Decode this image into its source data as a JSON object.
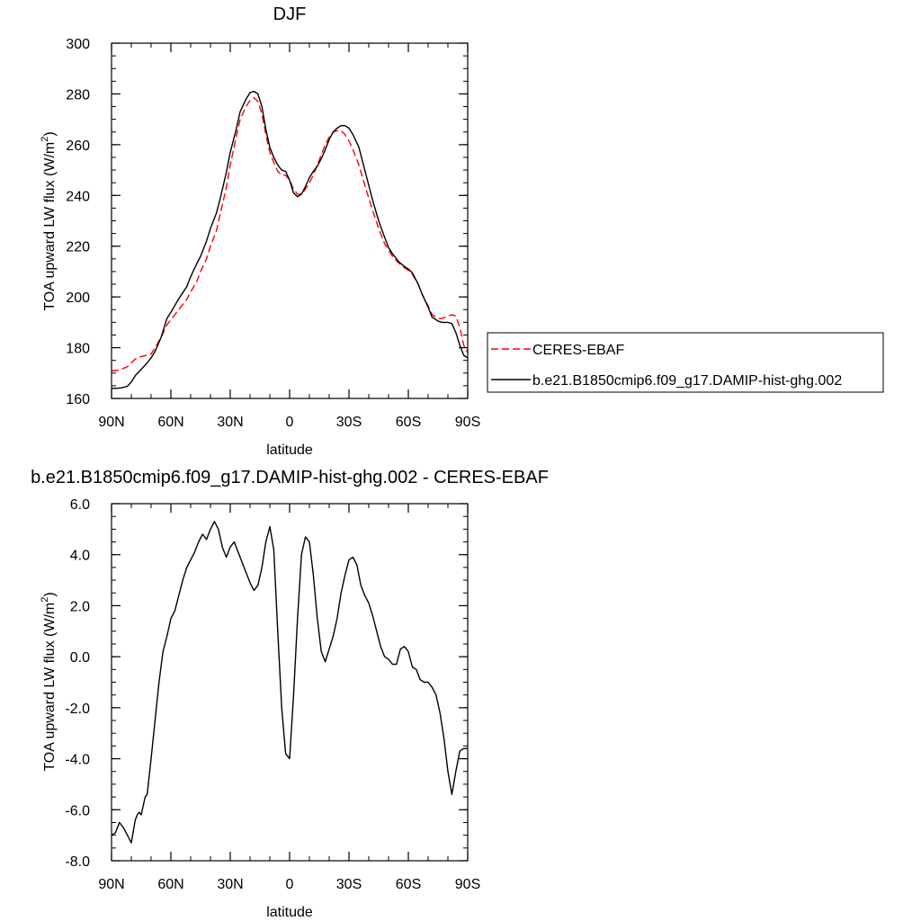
{
  "chart_data": [
    {
      "type": "line",
      "title": "DJF",
      "xlabel": "latitude",
      "ylabel": "TOA upward LW flux (W/m",
      "ylabel_sup": "2",
      "ylabel_end": ")",
      "xlim": [
        90,
        -90
      ],
      "ylim": [
        160,
        300
      ],
      "xticks": [
        {
          "value": 90,
          "label": "90N"
        },
        {
          "value": 60,
          "label": "60N"
        },
        {
          "value": 30,
          "label": "30N"
        },
        {
          "value": 0,
          "label": "0"
        },
        {
          "value": -30,
          "label": "30S"
        },
        {
          "value": -60,
          "label": "60S"
        },
        {
          "value": -90,
          "label": "90S"
        }
      ],
      "yticks": [
        {
          "value": 160,
          "label": "160"
        },
        {
          "value": 180,
          "label": "180"
        },
        {
          "value": 200,
          "label": "200"
        },
        {
          "value": 220,
          "label": "220"
        },
        {
          "value": 240,
          "label": "240"
        },
        {
          "value": 260,
          "label": "260"
        },
        {
          "value": 280,
          "label": "280"
        },
        {
          "value": 300,
          "label": "300"
        }
      ],
      "legend_position": "right",
      "series": [
        {
          "name": "CERES-EBAF",
          "color": "#ff0000",
          "style": "dashed",
          "x": [
            90,
            87,
            85,
            82,
            80,
            78,
            75,
            72,
            70,
            68,
            65,
            62,
            60,
            57,
            55,
            52,
            50,
            47,
            45,
            42,
            40,
            37,
            35,
            32,
            30,
            27,
            25,
            22,
            20,
            18,
            16,
            14,
            12,
            10,
            8,
            6,
            4,
            2,
            0,
            -2,
            -4,
            -6,
            -8,
            -10,
            -12,
            -14,
            -16,
            -18,
            -20,
            -22,
            -24,
            -26,
            -28,
            -30,
            -32,
            -35,
            -38,
            -40,
            -42,
            -45,
            -48,
            -50,
            -52,
            -55,
            -58,
            -60,
            -62,
            -65,
            -67,
            -70,
            -72,
            -75,
            -77,
            -80,
            -82,
            -84,
            -86,
            -88,
            -90
          ],
          "y": [
            171,
            171,
            171.5,
            172.5,
            174,
            175.5,
            176.5,
            177,
            177.5,
            180,
            184,
            189,
            191,
            194,
            196,
            199,
            202,
            206,
            210,
            215,
            220,
            226,
            233,
            243,
            252,
            263,
            270,
            275,
            277.5,
            278.5,
            277,
            272,
            264,
            257,
            253,
            249.5,
            248,
            248,
            246,
            242.5,
            240.5,
            240.5,
            242.5,
            245,
            248,
            252,
            256,
            260,
            263,
            265,
            265.5,
            265.5,
            264,
            261.5,
            258,
            252,
            244,
            239,
            234,
            227,
            221,
            218.5,
            216,
            213.5,
            211.5,
            210.5,
            209,
            205,
            201,
            196.5,
            193,
            191.5,
            191.5,
            192.5,
            193,
            192.5,
            188,
            181,
            178
          ]
        },
        {
          "name": "b.e21.B1850cmip6.f09_g17.DAMIP-hist-ghg.002",
          "color": "#000000",
          "style": "solid",
          "x": [
            90,
            87,
            85,
            82,
            80,
            78,
            75,
            72,
            70,
            68,
            65,
            62,
            60,
            57,
            55,
            52,
            50,
            47,
            45,
            42,
            40,
            37,
            35,
            32,
            30,
            27,
            25,
            22,
            20,
            18,
            16,
            14,
            12,
            10,
            8,
            6,
            4,
            2,
            0,
            -2,
            -4,
            -6,
            -8,
            -10,
            -12,
            -14,
            -16,
            -18,
            -20,
            -22,
            -24,
            -26,
            -28,
            -30,
            -32,
            -35,
            -38,
            -40,
            -42,
            -45,
            -48,
            -50,
            -52,
            -55,
            -58,
            -60,
            -62,
            -65,
            -67,
            -70,
            -72,
            -75,
            -77,
            -80,
            -82,
            -84,
            -86,
            -88,
            -90
          ],
          "y": [
            164,
            164,
            164.2,
            164.8,
            166.5,
            169,
            171.5,
            174,
            176,
            178.5,
            184,
            191.5,
            194,
            198,
            200.5,
            204,
            208,
            213,
            216,
            222,
            227,
            233,
            239,
            249,
            257,
            266,
            273,
            278,
            280.5,
            281,
            280,
            275,
            266,
            259,
            255,
            252,
            250,
            249.5,
            246,
            241,
            239.5,
            240.5,
            243.5,
            247,
            249.5,
            251.5,
            254.5,
            258,
            262,
            265,
            266.5,
            267.5,
            267.5,
            266.5,
            264,
            259,
            250,
            244,
            238,
            230,
            223.5,
            219.5,
            217,
            214,
            212,
            211,
            209.5,
            205,
            201,
            196,
            192,
            190.5,
            190,
            190,
            189.5,
            186,
            181,
            177,
            176
          ]
        }
      ]
    },
    {
      "type": "line",
      "title": "b.e21.B1850cmip6.f09_g17.DAMIP-hist-ghg.002 - CERES-EBAF",
      "xlabel": "latitude",
      "ylabel": "TOA upward LW flux (W/m",
      "ylabel_sup": "2",
      "ylabel_end": ")",
      "xlim": [
        90,
        -90
      ],
      "ylim": [
        -8,
        6
      ],
      "xticks": [
        {
          "value": 90,
          "label": "90N"
        },
        {
          "value": 60,
          "label": "60N"
        },
        {
          "value": 30,
          "label": "30N"
        },
        {
          "value": 0,
          "label": "0"
        },
        {
          "value": -30,
          "label": "30S"
        },
        {
          "value": -60,
          "label": "60S"
        },
        {
          "value": -90,
          "label": "90S"
        }
      ],
      "yticks": [
        {
          "value": -8,
          "label": "-8.0"
        },
        {
          "value": -6,
          "label": "-6.0"
        },
        {
          "value": -4,
          "label": "-4.0"
        },
        {
          "value": -2,
          "label": "-2.0"
        },
        {
          "value": 0,
          "label": "0.0"
        },
        {
          "value": 2,
          "label": "2.0"
        },
        {
          "value": 4,
          "label": "4.0"
        },
        {
          "value": 6,
          "label": "6.0"
        }
      ],
      "series": [
        {
          "name": "",
          "color": "#000000",
          "style": "solid",
          "x": [
            90,
            88,
            86,
            84,
            82,
            80,
            78,
            77,
            76,
            75,
            73,
            72,
            70,
            68,
            66,
            64,
            62,
            60,
            58,
            56,
            54,
            52,
            50,
            48,
            46,
            44,
            42,
            40,
            38,
            36,
            34,
            32,
            30,
            28,
            26,
            24,
            22,
            20,
            18,
            16,
            14,
            12,
            10,
            8,
            6,
            4,
            2,
            0,
            -2,
            -4,
            -6,
            -8,
            -10,
            -12,
            -14,
            -16,
            -18,
            -20,
            -22,
            -24,
            -26,
            -28,
            -30,
            -32,
            -34,
            -36,
            -38,
            -40,
            -42,
            -44,
            -46,
            -48,
            -50,
            -52,
            -54,
            -56,
            -58,
            -60,
            -62,
            -64,
            -66,
            -68,
            -70,
            -72,
            -74,
            -76,
            -78,
            -80,
            -82,
            -84,
            -86,
            -88,
            -90
          ],
          "y": [
            -7.0,
            -6.9,
            -6.5,
            -6.7,
            -7.0,
            -7.3,
            -6.4,
            -6.2,
            -6.1,
            -6.2,
            -5.5,
            -5.4,
            -4.0,
            -2.5,
            -1.0,
            0.2,
            0.8,
            1.5,
            1.8,
            2.4,
            3.0,
            3.5,
            3.8,
            4.1,
            4.5,
            4.8,
            4.6,
            5.0,
            5.3,
            5.0,
            4.3,
            3.9,
            4.3,
            4.5,
            4.1,
            3.7,
            3.3,
            2.9,
            2.6,
            2.8,
            3.5,
            4.5,
            5.1,
            4.2,
            1.0,
            -2.0,
            -3.8,
            -4.0,
            -1.5,
            1.5,
            4.0,
            4.7,
            4.5,
            3.2,
            1.5,
            0.2,
            -0.2,
            0.3,
            0.8,
            1.5,
            2.5,
            3.2,
            3.8,
            3.9,
            3.6,
            2.8,
            2.4,
            2.1,
            1.6,
            1.0,
            0.4,
            0.0,
            -0.1,
            -0.3,
            -0.3,
            0.3,
            0.4,
            0.2,
            -0.4,
            -0.5,
            -0.9,
            -1.0,
            -1.0,
            -1.2,
            -1.5,
            -2.2,
            -3.2,
            -4.5,
            -5.4,
            -4.5,
            -3.7,
            -3.6,
            -3.6
          ]
        }
      ]
    }
  ]
}
